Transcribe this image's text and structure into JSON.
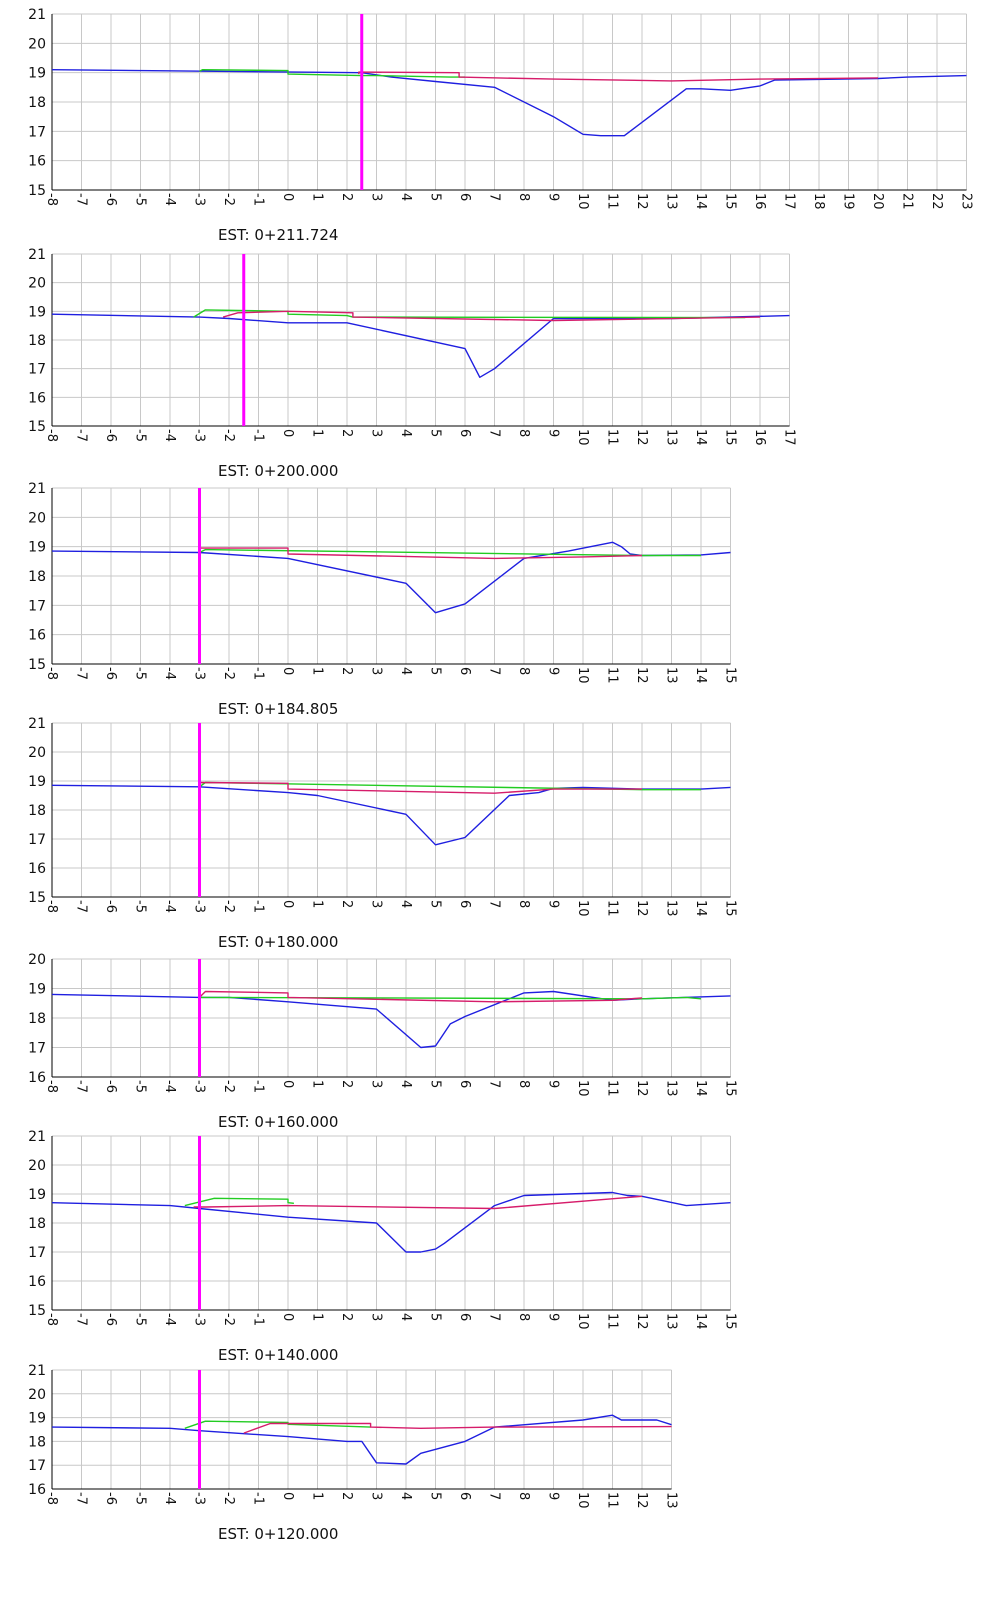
{
  "colors": {
    "background": "#ffffff",
    "grid": "#c8c8c8",
    "axis": "#000000",
    "terrain": "#1f1fe0",
    "design": "#d61c6a",
    "existing": "#22cc22",
    "centerline": "#ff00ff"
  },
  "chart_data": [
    {
      "type": "line",
      "station_label": "EST:  0+211.724",
      "xlim": [
        -8,
        23
      ],
      "ylim": [
        15,
        21
      ],
      "x_ticks": [
        -8,
        -7,
        -6,
        -5,
        -4,
        -3,
        -2,
        -1,
        0,
        1,
        2,
        3,
        4,
        5,
        6,
        7,
        8,
        9,
        10,
        11,
        12,
        13,
        14,
        15,
        16,
        17,
        18,
        19,
        20,
        21,
        22,
        23
      ],
      "y_ticks": [
        15,
        16,
        17,
        18,
        19,
        20,
        21
      ],
      "centerline_x": 2.5,
      "series": [
        {
          "color": "terrain",
          "points": [
            [
              -8,
              19.1
            ],
            [
              2.5,
              19.0
            ],
            [
              3.5,
              18.85
            ],
            [
              5,
              18.7
            ],
            [
              7,
              18.5
            ],
            [
              8.8,
              17.6
            ],
            [
              9,
              17.5
            ],
            [
              10,
              16.9
            ],
            [
              10.6,
              16.85
            ],
            [
              11.4,
              16.85
            ],
            [
              13.5,
              18.45
            ],
            [
              14,
              18.45
            ],
            [
              15,
              18.4
            ],
            [
              16,
              18.55
            ],
            [
              16.5,
              18.75
            ],
            [
              20,
              18.8
            ],
            [
              21,
              18.85
            ],
            [
              23,
              18.9
            ]
          ]
        },
        {
          "color": "existing",
          "points": [
            [
              -3,
              19.05
            ],
            [
              -2.9,
              19.1
            ],
            [
              0,
              19.07
            ],
            [
              0,
              18.95
            ],
            [
              2.5,
              18.9
            ],
            [
              3,
              18.9
            ],
            [
              5.5,
              18.85
            ],
            [
              6,
              18.85
            ]
          ]
        },
        {
          "color": "design",
          "points": [
            [
              2.4,
              18.95
            ],
            [
              2.4,
              19.02
            ],
            [
              5.8,
              19.0
            ],
            [
              5.8,
              18.85
            ],
            [
              9,
              18.78
            ],
            [
              13,
              18.72
            ],
            [
              16,
              18.78
            ],
            [
              20,
              18.82
            ]
          ]
        }
      ]
    },
    {
      "type": "line",
      "station_label": "EST:  0+200.000",
      "xlim": [
        -8,
        17
      ],
      "ylim": [
        15,
        21
      ],
      "x_ticks": [
        -8,
        -7,
        -6,
        -5,
        -4,
        -3,
        -2,
        -1,
        0,
        1,
        2,
        3,
        4,
        5,
        6,
        7,
        8,
        9,
        10,
        11,
        12,
        13,
        14,
        15,
        16,
        17
      ],
      "y_ticks": [
        15,
        16,
        17,
        18,
        19,
        20,
        21
      ],
      "centerline_x": -1.5,
      "series": [
        {
          "color": "terrain",
          "points": [
            [
              -8,
              18.9
            ],
            [
              -3,
              18.8
            ],
            [
              -2,
              18.75
            ],
            [
              0,
              18.6
            ],
            [
              2,
              18.6
            ],
            [
              6,
              17.7
            ],
            [
              6.5,
              16.7
            ],
            [
              7,
              17
            ],
            [
              9,
              18.75
            ],
            [
              13,
              18.75
            ],
            [
              17,
              18.85
            ]
          ]
        },
        {
          "color": "existing",
          "points": [
            [
              -3.2,
              18.8
            ],
            [
              -2.8,
              19.05
            ],
            [
              0,
              19.0
            ],
            [
              0,
              18.9
            ],
            [
              2,
              18.85
            ],
            [
              2.2,
              18.8
            ],
            [
              15.5,
              18.78
            ]
          ]
        },
        {
          "color": "design",
          "points": [
            [
              -2.2,
              18.8
            ],
            [
              -1.7,
              18.95
            ],
            [
              0,
              19.0
            ],
            [
              2.2,
              18.95
            ],
            [
              2.2,
              18.8
            ],
            [
              9,
              18.68
            ],
            [
              16,
              18.8
            ]
          ]
        }
      ]
    },
    {
      "type": "line",
      "station_label": "EST:  0+184.805",
      "xlim": [
        -8,
        15
      ],
      "ylim": [
        15,
        21
      ],
      "x_ticks": [
        -8,
        -7,
        -6,
        -5,
        -4,
        -3,
        -2,
        -1,
        0,
        1,
        2,
        3,
        4,
        5,
        6,
        7,
        8,
        9,
        10,
        11,
        12,
        13,
        14,
        15
      ],
      "y_ticks": [
        15,
        16,
        17,
        18,
        19,
        20,
        21
      ],
      "centerline_x": -3,
      "series": [
        {
          "color": "terrain",
          "points": [
            [
              -8,
              18.85
            ],
            [
              -3,
              18.8
            ],
            [
              0,
              18.6
            ],
            [
              4,
              17.75
            ],
            [
              5,
              16.75
            ],
            [
              6,
              17.05
            ],
            [
              8,
              18.6
            ],
            [
              9.5,
              18.85
            ],
            [
              11,
              19.15
            ],
            [
              11.3,
              19.0
            ],
            [
              11.6,
              18.75
            ],
            [
              12,
              18.7
            ],
            [
              14,
              18.72
            ],
            [
              15,
              18.8
            ]
          ]
        },
        {
          "color": "existing",
          "points": [
            [
              -3,
              18.8
            ],
            [
              -2.8,
              18.9
            ],
            [
              12,
              18.7
            ],
            [
              14,
              18.7
            ]
          ]
        },
        {
          "color": "design",
          "points": [
            [
              -3,
              18.8
            ],
            [
              -3,
              18.95
            ],
            [
              0,
              18.95
            ],
            [
              0,
              18.75
            ],
            [
              7,
              18.6
            ],
            [
              10,
              18.65
            ],
            [
              12,
              18.7
            ]
          ]
        }
      ]
    },
    {
      "type": "line",
      "station_label": "EST:  0+180.000",
      "xlim": [
        -8,
        15
      ],
      "ylim": [
        15,
        21
      ],
      "x_ticks": [
        -8,
        -7,
        -6,
        -5,
        -4,
        -3,
        -2,
        -1,
        0,
        1,
        2,
        3,
        4,
        5,
        6,
        7,
        8,
        9,
        10,
        11,
        12,
        13,
        14,
        15
      ],
      "y_ticks": [
        15,
        16,
        17,
        18,
        19,
        20,
        21
      ],
      "centerline_x": -3,
      "series": [
        {
          "color": "terrain",
          "points": [
            [
              -8,
              18.85
            ],
            [
              -3,
              18.8
            ],
            [
              0,
              18.6
            ],
            [
              1,
              18.5
            ],
            [
              4,
              17.85
            ],
            [
              5,
              16.8
            ],
            [
              6,
              17.05
            ],
            [
              7.5,
              18.5
            ],
            [
              8.5,
              18.6
            ],
            [
              9,
              18.75
            ],
            [
              10,
              18.78
            ],
            [
              12,
              18.72
            ],
            [
              14,
              18.72
            ],
            [
              15,
              18.78
            ]
          ]
        },
        {
          "color": "existing",
          "points": [
            [
              -3,
              18.8
            ],
            [
              -2.8,
              18.95
            ],
            [
              12,
              18.7
            ],
            [
              14,
              18.7
            ]
          ]
        },
        {
          "color": "design",
          "points": [
            [
              -3,
              18.8
            ],
            [
              -3,
              18.95
            ],
            [
              0,
              18.92
            ],
            [
              0,
              18.72
            ],
            [
              7,
              18.58
            ],
            [
              9,
              18.72
            ],
            [
              12,
              18.72
            ]
          ]
        }
      ]
    },
    {
      "type": "line",
      "station_label": "EST:  0+160.000",
      "xlim": [
        -8,
        15
      ],
      "ylim": [
        16,
        20
      ],
      "x_ticks": [
        -8,
        -7,
        -6,
        -5,
        -4,
        -3,
        -2,
        -1,
        0,
        1,
        2,
        3,
        4,
        5,
        6,
        7,
        8,
        9,
        10,
        11,
        12,
        13,
        14,
        15
      ],
      "y_ticks": [
        16,
        17,
        18,
        19,
        20
      ],
      "centerline_x": -3,
      "series": [
        {
          "color": "terrain",
          "points": [
            [
              -8,
              18.8
            ],
            [
              -3,
              18.7
            ],
            [
              -2,
              18.7
            ],
            [
              0,
              18.55
            ],
            [
              3,
              18.3
            ],
            [
              4.5,
              17.0
            ],
            [
              5,
              17.05
            ],
            [
              5.5,
              17.8
            ],
            [
              6,
              18.05
            ],
            [
              8,
              18.85
            ],
            [
              9,
              18.9
            ],
            [
              11,
              18.6
            ],
            [
              12,
              18.65
            ],
            [
              15,
              18.75
            ]
          ]
        },
        {
          "color": "existing",
          "points": [
            [
              -3,
              18.7
            ],
            [
              12,
              18.65
            ],
            [
              13.5,
              18.7
            ],
            [
              14,
              18.65
            ]
          ]
        },
        {
          "color": "design",
          "points": [
            [
              -3,
              18.7
            ],
            [
              -2.8,
              18.9
            ],
            [
              0,
              18.85
            ],
            [
              0,
              18.7
            ],
            [
              7,
              18.55
            ],
            [
              11,
              18.6
            ],
            [
              12,
              18.68
            ]
          ]
        }
      ]
    },
    {
      "type": "line",
      "station_label": "EST:  0+140.000",
      "xlim": [
        -8,
        15
      ],
      "ylim": [
        15,
        21
      ],
      "x_ticks": [
        -8,
        -7,
        -6,
        -5,
        -4,
        -3,
        -2,
        -1,
        0,
        1,
        2,
        3,
        4,
        5,
        6,
        7,
        8,
        9,
        10,
        11,
        12,
        13,
        14,
        15
      ],
      "y_ticks": [
        15,
        16,
        17,
        18,
        19,
        20,
        21
      ],
      "centerline_x": -3,
      "series": [
        {
          "color": "terrain",
          "points": [
            [
              -8,
              18.7
            ],
            [
              -4,
              18.6
            ],
            [
              -3,
              18.5
            ],
            [
              0,
              18.2
            ],
            [
              3,
              18.0
            ],
            [
              3.5,
              17.5
            ],
            [
              4,
              17.0
            ],
            [
              4.5,
              17.0
            ],
            [
              5,
              17.1
            ],
            [
              5.3,
              17.3
            ],
            [
              7,
              18.6
            ],
            [
              8,
              18.95
            ],
            [
              11,
              19.05
            ],
            [
              11.5,
              18.95
            ],
            [
              12,
              18.92
            ],
            [
              13.5,
              18.6
            ],
            [
              15,
              18.7
            ]
          ]
        },
        {
          "color": "existing",
          "points": [
            [
              -3.5,
              18.6
            ],
            [
              -2.5,
              18.85
            ],
            [
              0,
              18.82
            ],
            [
              0,
              18.7
            ],
            [
              0.2,
              18.68
            ]
          ]
        },
        {
          "color": "design",
          "points": [
            [
              -3.2,
              18.55
            ],
            [
              -2.8,
              18.55
            ],
            [
              0,
              18.6
            ],
            [
              7,
              18.5
            ],
            [
              12,
              18.92
            ]
          ]
        }
      ]
    },
    {
      "type": "line",
      "station_label": "EST:  0+120.000",
      "xlim": [
        -8,
        13
      ],
      "ylim": [
        16,
        21
      ],
      "x_ticks": [
        -8,
        -7,
        -6,
        -5,
        -4,
        -3,
        -2,
        -1,
        0,
        1,
        2,
        3,
        4,
        5,
        6,
        7,
        8,
        9,
        10,
        11,
        12,
        13
      ],
      "y_ticks": [
        16,
        17,
        18,
        19,
        20,
        21
      ],
      "centerline_x": -3,
      "series": [
        {
          "color": "terrain",
          "points": [
            [
              -8,
              18.6
            ],
            [
              -4,
              18.55
            ],
            [
              -3,
              18.45
            ],
            [
              0,
              18.2
            ],
            [
              2,
              18.0
            ],
            [
              2.5,
              18.0
            ],
            [
              3,
              17.1
            ],
            [
              4,
              17.05
            ],
            [
              4.5,
              17.5
            ],
            [
              6,
              18.0
            ],
            [
              7,
              18.6
            ],
            [
              10,
              18.9
            ],
            [
              11,
              19.1
            ],
            [
              11.3,
              18.9
            ],
            [
              12.5,
              18.9
            ],
            [
              13,
              18.7
            ]
          ]
        },
        {
          "color": "existing",
          "points": [
            [
              -3.5,
              18.55
            ],
            [
              -2.8,
              18.85
            ],
            [
              0,
              18.8
            ],
            [
              0,
              18.72
            ],
            [
              2.8,
              18.6
            ]
          ]
        },
        {
          "color": "design",
          "points": [
            [
              -1.5,
              18.35
            ],
            [
              -0.6,
              18.75
            ],
            [
              2.8,
              18.75
            ],
            [
              2.8,
              18.6
            ],
            [
              4.5,
              18.55
            ],
            [
              7,
              18.6
            ],
            [
              13,
              18.62
            ]
          ]
        }
      ]
    }
  ]
}
